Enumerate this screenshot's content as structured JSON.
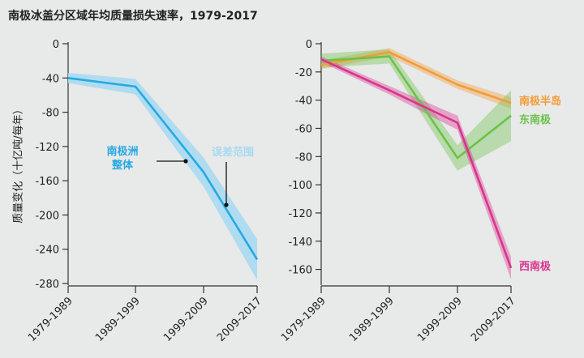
{
  "title": "南极冰盖分区域年均质量损失速率，1979-2017",
  "ylabel": "质量变化（十亿吨/每年）",
  "colors": {
    "antarctica": "#27a9e1",
    "antarctica_band": "#a8daf1",
    "peninsula": "#f39c36",
    "east": "#6cc24a",
    "west": "#d9338f"
  },
  "chart_data": [
    {
      "type": "line",
      "categories": [
        "1979-1989",
        "1989-1999",
        "1999-2009",
        "2009-2017"
      ],
      "ylim": [
        -280,
        0
      ],
      "yticks": [
        0,
        -40,
        -80,
        -120,
        -160,
        -200,
        -240,
        -280
      ],
      "series": [
        {
          "key": "antarctica",
          "name": "南极洲\n整体",
          "values": [
            -40,
            -50,
            -150,
            -252
          ],
          "band_upper": [
            -34,
            -41,
            -133,
            -228
          ],
          "band_lower": [
            -46,
            -59,
            -167,
            -276
          ]
        }
      ],
      "annotations": [
        "误差范围"
      ]
    },
    {
      "type": "line",
      "categories": [
        "1979-1989",
        "1989-1999",
        "1999-2009",
        "2009-2017"
      ],
      "ylim": [
        -170,
        0
      ],
      "yticks": [
        0,
        -20,
        -40,
        -60,
        -80,
        -100,
        -120,
        -140,
        -160
      ],
      "series": [
        {
          "key": "peninsula",
          "name": "南极半岛",
          "values": [
            -15,
            -6,
            -29,
            -42
          ],
          "band_upper": [
            -12,
            -3,
            -26,
            -38
          ],
          "band_lower": [
            -18,
            -9,
            -32,
            -46
          ]
        },
        {
          "key": "east",
          "name": "东南极",
          "values": [
            -12,
            -9,
            -81,
            -51
          ],
          "band_upper": [
            -7,
            -4,
            -72,
            -33
          ],
          "band_lower": [
            -17,
            -14,
            -90,
            -69
          ]
        },
        {
          "key": "west",
          "name": "西南极",
          "values": [
            -11,
            -33,
            -56,
            -159
          ],
          "band_upper": [
            -9,
            -30,
            -51,
            -151
          ],
          "band_lower": [
            -13,
            -36,
            -61,
            -167
          ]
        }
      ]
    }
  ]
}
